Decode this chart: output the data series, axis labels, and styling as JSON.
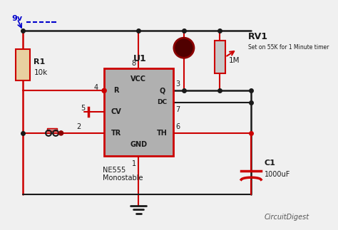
{
  "bg_color": "#f0f0f0",
  "wire_color": "#1a1a1a",
  "red_color": "#cc0000",
  "blue_color": "#0000cc",
  "ic_fill": "#b0b0b0",
  "ic_border": "#cc0000",
  "label_color": "#1a1a1a",
  "title_label": "NE555\nMonostable",
  "rv1_label": "RV1",
  "rv1_sub": "Set on 55K for 1 Minute timer",
  "rv1_val": "1M",
  "r1_label": "R1",
  "r1_val": "10k",
  "c1_label": "C1",
  "c1_val": "1000uF",
  "u1_label": "U1",
  "vcc_label": "VCC",
  "gnd_label": "GND",
  "r_label": "R",
  "q_label": "Q",
  "dc_label": "DC",
  "cv_label": "CV",
  "tr_label": "TR",
  "th_label": "TH",
  "pin3": "3",
  "pin4": "4",
  "pin5": "5",
  "pin6": "6",
  "pin7": "7",
  "pin8": "8",
  "pin2": "2",
  "pin1": "1",
  "vcc_text": "9v",
  "circuit_digest": "CircuitDigest"
}
